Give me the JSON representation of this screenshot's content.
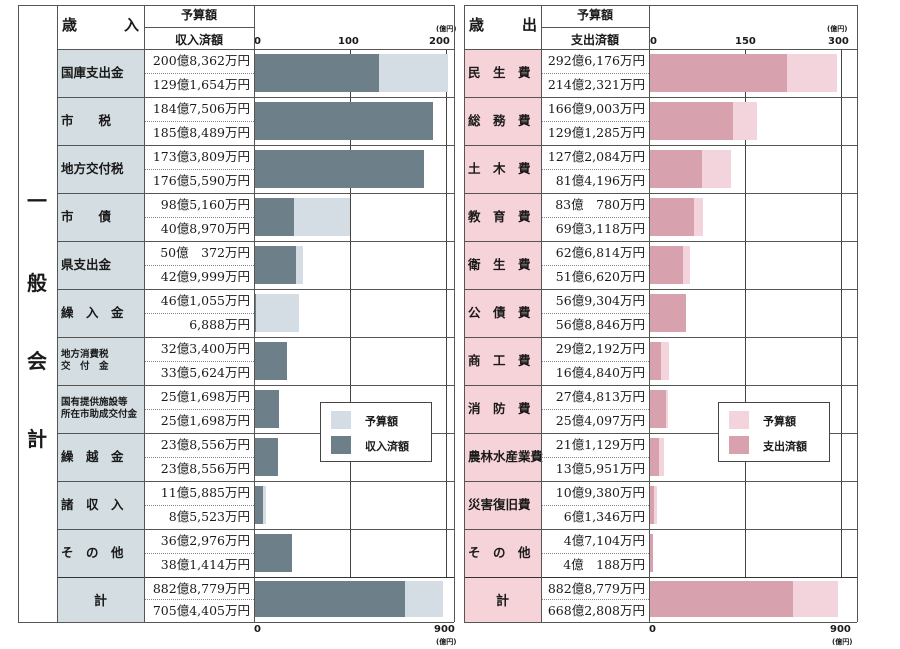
{
  "side_label": [
    "一",
    "般",
    "会",
    "計"
  ],
  "revenue": {
    "heading_char1": "歳",
    "heading_char2": "入",
    "col_budget": "予算額",
    "col_actual": "収入済額",
    "unit": "(億円)",
    "total_unit": "(億円)",
    "legend": {
      "budget": "予算額",
      "actual": "収入済額"
    },
    "colors": {
      "budget": "#d3dde3",
      "actual": "#6d8089",
      "label_bg": "#d4dde2"
    },
    "rows": [
      {
        "label": "国庫支出金",
        "budget": "200億8,362万円",
        "actual": "129億1,654万円",
        "budget_v": 200.84,
        "actual_v": 129.17
      },
      {
        "label": "市　　税",
        "budget": "184億7,506万円",
        "actual": "185億8,489万円",
        "budget_v": 184.75,
        "actual_v": 185.85
      },
      {
        "label": "地方交付税",
        "budget": "173億3,809万円",
        "actual": "176億5,590万円",
        "budget_v": 173.38,
        "actual_v": 176.56
      },
      {
        "label": "市　　債",
        "budget": "98億5,160万円",
        "actual": "40億8,970万円",
        "budget_v": 98.52,
        "actual_v": 40.9
      },
      {
        "label": "県支出金",
        "budget": "50億　372万円",
        "actual": "42億9,999万円",
        "budget_v": 50.04,
        "actual_v": 43.0
      },
      {
        "label": "繰　入　金",
        "budget": "46億1,055万円",
        "actual": "6,888万円",
        "budget_v": 46.11,
        "actual_v": 0.69
      },
      {
        "label": "地方消費税\n交　付　金",
        "budget": "32億3,400万円",
        "actual": "33億5,624万円",
        "budget_v": 32.34,
        "actual_v": 33.56
      },
      {
        "label": "国有提供施設等\n所在市助成交付金",
        "budget": "25億1,698万円",
        "actual": "25億1,698万円",
        "budget_v": 25.17,
        "actual_v": 25.17
      },
      {
        "label": "繰　越　金",
        "budget": "23億8,556万円",
        "actual": "23億8,556万円",
        "budget_v": 23.86,
        "actual_v": 23.86
      },
      {
        "label": "諸　収　入",
        "budget": "11億5,885万円",
        "actual": "8億5,523万円",
        "budget_v": 11.59,
        "actual_v": 8.55
      },
      {
        "label": "そ　の　他",
        "budget": "36億2,976万円",
        "actual": "38億1,414万円",
        "budget_v": 36.3,
        "actual_v": 38.14
      }
    ],
    "total": {
      "label": "計",
      "budget": "882億8,779万円",
      "actual": "705億4,405万円",
      "budget_v": 882.88,
      "actual_v": 705.44
    },
    "ticks": [
      "0",
      "100",
      "200"
    ],
    "total_ticks": [
      "0",
      "900"
    ]
  },
  "expenditure": {
    "heading_char1": "歳",
    "heading_char2": "出",
    "col_budget": "予算額",
    "col_actual": "支出済額",
    "unit": "(億円)",
    "total_unit": "(億円)",
    "legend": {
      "budget": "予算額",
      "actual": "支出済額"
    },
    "colors": {
      "budget": "#f3d3dc",
      "actual": "#d7a1ae",
      "label_bg": "#f6d3d8"
    },
    "rows": [
      {
        "label": "民　生　費",
        "budget": "292億6,176万円",
        "actual": "214億2,321万円",
        "budget_v": 292.62,
        "actual_v": 214.23
      },
      {
        "label": "総　務　費",
        "budget": "166億9,003万円",
        "actual": "129億1,285万円",
        "budget_v": 166.9,
        "actual_v": 129.13
      },
      {
        "label": "土　木　費",
        "budget": "127億2,084万円",
        "actual": "81億4,196万円",
        "budget_v": 127.21,
        "actual_v": 81.42
      },
      {
        "label": "教　育　費",
        "budget": "83億　780万円",
        "actual": "69億3,118万円",
        "budget_v": 83.08,
        "actual_v": 69.31
      },
      {
        "label": "衛　生　費",
        "budget": "62億6,814万円",
        "actual": "51億6,620万円",
        "budget_v": 62.68,
        "actual_v": 51.66
      },
      {
        "label": "公　債　費",
        "budget": "56億9,304万円",
        "actual": "56億8,846万円",
        "budget_v": 56.93,
        "actual_v": 56.88
      },
      {
        "label": "商　工　費",
        "budget": "29億2,192万円",
        "actual": "16億4,840万円",
        "budget_v": 29.22,
        "actual_v": 16.48
      },
      {
        "label": "消　防　費",
        "budget": "27億4,813万円",
        "actual": "25億4,097万円",
        "budget_v": 27.48,
        "actual_v": 25.41
      },
      {
        "label": "農林水産業費",
        "budget": "21億1,129万円",
        "actual": "13億5,951万円",
        "budget_v": 21.11,
        "actual_v": 13.6
      },
      {
        "label": "災害復旧費",
        "budget": "10億9,380万円",
        "actual": "6億1,346万円",
        "budget_v": 10.94,
        "actual_v": 6.13
      },
      {
        "label": "そ　の　他",
        "budget": "4億7,104万円",
        "actual": "4億　188万円",
        "budget_v": 4.71,
        "actual_v": 4.02
      }
    ],
    "total": {
      "label": "計",
      "budget": "882億8,779万円",
      "actual": "668億2,808万円",
      "budget_v": 882.88,
      "actual_v": 668.28
    },
    "ticks": [
      "0",
      "150",
      "300"
    ],
    "total_ticks": [
      "0",
      "900"
    ]
  },
  "chart_data": [
    {
      "type": "bar",
      "title": "歳入",
      "unit": "億円",
      "categories": [
        "国庫支出金",
        "市税",
        "地方交付税",
        "市債",
        "県支出金",
        "繰入金",
        "地方消費税交付金",
        "国有提供施設等所在市助成交付金",
        "繰越金",
        "諸収入",
        "その他"
      ],
      "series": [
        {
          "name": "予算額",
          "values": [
            200.84,
            184.75,
            173.38,
            98.52,
            50.04,
            46.11,
            32.34,
            25.17,
            23.86,
            11.59,
            36.3
          ]
        },
        {
          "name": "収入済額",
          "values": [
            129.17,
            185.85,
            176.56,
            40.9,
            43.0,
            0.69,
            33.56,
            25.17,
            23.86,
            8.55,
            38.14
          ]
        }
      ],
      "xlim": [
        0,
        200
      ],
      "total": {
        "予算額": 882.88,
        "収入済額": 705.44,
        "xlim": [
          0,
          900
        ]
      },
      "grid": true,
      "legend": "bottom-right"
    },
    {
      "type": "bar",
      "title": "歳出",
      "unit": "億円",
      "categories": [
        "民生費",
        "総務費",
        "土木費",
        "教育費",
        "衛生費",
        "公債費",
        "商工費",
        "消防費",
        "農林水産業費",
        "災害復旧費",
        "その他"
      ],
      "series": [
        {
          "name": "予算額",
          "values": [
            292.62,
            166.9,
            127.21,
            83.08,
            62.68,
            56.93,
            29.22,
            27.48,
            21.11,
            10.94,
            4.71
          ]
        },
        {
          "name": "支出済額",
          "values": [
            214.23,
            129.13,
            81.42,
            69.31,
            51.66,
            56.88,
            16.48,
            25.41,
            13.6,
            6.13,
            4.02
          ]
        }
      ],
      "xlim": [
        0,
        300
      ],
      "total": {
        "予算額": 882.88,
        "支出済額": 668.28,
        "xlim": [
          0,
          900
        ]
      },
      "grid": true,
      "legend": "bottom-right"
    }
  ]
}
